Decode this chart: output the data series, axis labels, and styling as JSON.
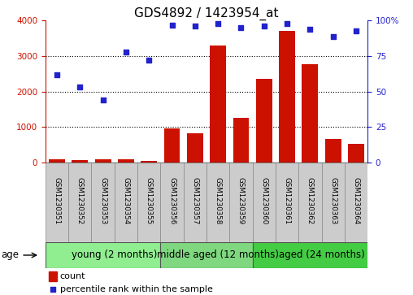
{
  "title": "GDS4892 / 1423954_at",
  "samples": [
    "GSM1230351",
    "GSM1230352",
    "GSM1230353",
    "GSM1230354",
    "GSM1230355",
    "GSM1230356",
    "GSM1230357",
    "GSM1230358",
    "GSM1230359",
    "GSM1230360",
    "GSM1230361",
    "GSM1230362",
    "GSM1230363",
    "GSM1230364"
  ],
  "counts": [
    80,
    70,
    80,
    90,
    30,
    950,
    820,
    3300,
    1250,
    2350,
    3720,
    2770,
    650,
    530
  ],
  "percentiles": [
    62,
    53,
    44,
    78,
    72,
    97,
    96,
    98,
    95,
    96,
    98,
    94,
    89,
    93
  ],
  "groups": [
    {
      "label": "young (2 months)",
      "start": 0,
      "end": 5,
      "color": "#90EE90"
    },
    {
      "label": "middle aged (12 months)",
      "start": 5,
      "end": 9,
      "color": "#7FD87F"
    },
    {
      "label": "aged (24 months)",
      "start": 9,
      "end": 14,
      "color": "#44CC44"
    }
  ],
  "bar_color": "#CC1100",
  "dot_color": "#2222CC",
  "left_axis_color": "#CC1100",
  "right_axis_color": "#2222CC",
  "ylim_left": [
    0,
    4000
  ],
  "ylim_right": [
    0,
    100
  ],
  "yticks_left": [
    0,
    1000,
    2000,
    3000,
    4000
  ],
  "yticks_right": [
    0,
    25,
    50,
    75,
    100
  ],
  "background_color": "#FFFFFF",
  "age_label": "age",
  "legend_count_label": "count",
  "legend_pct_label": "percentile rank within the sample",
  "title_fontsize": 11,
  "tick_fontsize": 7.5,
  "group_label_fontsize": 8.5,
  "sample_fontsize": 6.2
}
